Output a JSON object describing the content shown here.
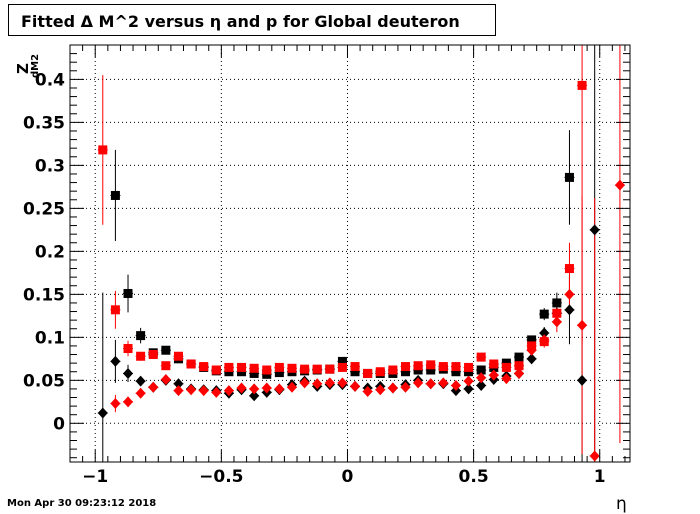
{
  "chart_data": {
    "type": "scatter",
    "title": "Fitted Δ M^2 versus η and p for Global deuteron",
    "xlabel": "η",
    "ylabel_main": "Z",
    "ylabel_sub": "dM2",
    "xlim": [
      -1.1,
      1.12
    ],
    "ylim": [
      -0.045,
      0.44
    ],
    "x_ticks": [
      -1,
      -0.5,
      0,
      0.5,
      1
    ],
    "x_tick_labels": [
      "−1",
      "−0.5",
      "0",
      "0.5",
      "1"
    ],
    "y_ticks": [
      0,
      0.05,
      0.1,
      0.15,
      0.2,
      0.25,
      0.3,
      0.35,
      0.4
    ],
    "y_tick_labels": [
      "0",
      "0.05",
      "0.1",
      "0.15",
      "0.2",
      "0.25",
      "0.3",
      "0.35",
      "0.4"
    ],
    "grid": true,
    "colors": {
      "black": "#000000",
      "red": "#ff0000"
    },
    "series": [
      {
        "color": "#000000",
        "marker": "square",
        "points": [
          [
            -0.92,
            0.265,
            0.053
          ],
          [
            -0.87,
            0.151,
            0.022
          ],
          [
            -0.82,
            0.102,
            0.009
          ],
          [
            -0.77,
            0.082,
            0.005
          ],
          [
            -0.72,
            0.085,
            0.004
          ],
          [
            -0.67,
            0.075,
            0.004
          ],
          [
            -0.62,
            0.069,
            0.003
          ],
          [
            -0.57,
            0.065,
            0.003
          ],
          [
            -0.52,
            0.061,
            0.003
          ],
          [
            -0.47,
            0.06,
            0.003
          ],
          [
            -0.42,
            0.06,
            0.003
          ],
          [
            -0.37,
            0.058,
            0.003
          ],
          [
            -0.32,
            0.057,
            0.003
          ],
          [
            -0.27,
            0.059,
            0.003
          ],
          [
            -0.22,
            0.06,
            0.003
          ],
          [
            -0.17,
            0.061,
            0.003
          ],
          [
            -0.12,
            0.062,
            0.003
          ],
          [
            -0.07,
            0.063,
            0.003
          ],
          [
            -0.02,
            0.072,
            0.003
          ],
          [
            0.03,
            0.06,
            0.003
          ],
          [
            0.08,
            0.058,
            0.003
          ],
          [
            0.13,
            0.058,
            0.003
          ],
          [
            0.18,
            0.058,
            0.003
          ],
          [
            0.23,
            0.06,
            0.003
          ],
          [
            0.28,
            0.062,
            0.003
          ],
          [
            0.33,
            0.062,
            0.003
          ],
          [
            0.38,
            0.063,
            0.003
          ],
          [
            0.43,
            0.06,
            0.003
          ],
          [
            0.48,
            0.06,
            0.003
          ],
          [
            0.53,
            0.062,
            0.003
          ],
          [
            0.58,
            0.065,
            0.003
          ],
          [
            0.63,
            0.07,
            0.004
          ],
          [
            0.68,
            0.077,
            0.004
          ],
          [
            0.73,
            0.097,
            0.005
          ],
          [
            0.78,
            0.127,
            0.007
          ],
          [
            0.83,
            0.14,
            0.012
          ],
          [
            0.88,
            0.286,
            0.055
          ]
        ]
      },
      {
        "color": "#000000",
        "marker": "diamond",
        "points": [
          [
            -0.97,
            0.012,
            0.14
          ],
          [
            -0.92,
            0.072,
            0.025
          ],
          [
            -0.87,
            0.058,
            0.01
          ],
          [
            -0.82,
            0.049,
            0.005
          ],
          [
            -0.77,
            0.042,
            0.004
          ],
          [
            -0.72,
            0.05,
            0.003
          ],
          [
            -0.67,
            0.046,
            0.003
          ],
          [
            -0.62,
            0.04,
            0.003
          ],
          [
            -0.57,
            0.039,
            0.003
          ],
          [
            -0.52,
            0.038,
            0.003
          ],
          [
            -0.47,
            0.035,
            0.003
          ],
          [
            -0.42,
            0.039,
            0.003
          ],
          [
            -0.37,
            0.032,
            0.003
          ],
          [
            -0.32,
            0.036,
            0.003
          ],
          [
            -0.27,
            0.039,
            0.003
          ],
          [
            -0.22,
            0.045,
            0.003
          ],
          [
            -0.17,
            0.049,
            0.003
          ],
          [
            -0.12,
            0.043,
            0.003
          ],
          [
            -0.07,
            0.045,
            0.003
          ],
          [
            -0.02,
            0.045,
            0.003
          ],
          [
            0.03,
            0.043,
            0.003
          ],
          [
            0.08,
            0.041,
            0.003
          ],
          [
            0.13,
            0.043,
            0.003
          ],
          [
            0.18,
            0.041,
            0.003
          ],
          [
            0.23,
            0.045,
            0.003
          ],
          [
            0.28,
            0.05,
            0.003
          ],
          [
            0.33,
            0.046,
            0.003
          ],
          [
            0.38,
            0.046,
            0.003
          ],
          [
            0.43,
            0.038,
            0.003
          ],
          [
            0.48,
            0.04,
            0.003
          ],
          [
            0.53,
            0.044,
            0.003
          ],
          [
            0.58,
            0.051,
            0.003
          ],
          [
            0.63,
            0.055,
            0.004
          ],
          [
            0.68,
            0.058,
            0.004
          ],
          [
            0.73,
            0.075,
            0.005
          ],
          [
            0.78,
            0.105,
            0.007
          ],
          [
            0.83,
            0.128,
            0.012
          ],
          [
            0.88,
            0.132,
            0.04
          ],
          [
            0.93,
            0.05,
            0.1
          ],
          [
            0.98,
            0.225,
            0.3
          ]
        ]
      },
      {
        "color": "#ff0000",
        "marker": "square",
        "points": [
          [
            -0.97,
            0.318,
            0.087
          ],
          [
            -0.92,
            0.132,
            0.022
          ],
          [
            -0.87,
            0.087,
            0.009
          ],
          [
            -0.82,
            0.078,
            0.005
          ],
          [
            -0.77,
            0.08,
            0.004
          ],
          [
            -0.72,
            0.067,
            0.004
          ],
          [
            -0.67,
            0.078,
            0.003
          ],
          [
            -0.62,
            0.069,
            0.003
          ],
          [
            -0.57,
            0.066,
            0.003
          ],
          [
            -0.52,
            0.062,
            0.003
          ],
          [
            -0.47,
            0.065,
            0.003
          ],
          [
            -0.42,
            0.065,
            0.003
          ],
          [
            -0.37,
            0.064,
            0.003
          ],
          [
            -0.32,
            0.062,
            0.003
          ],
          [
            -0.27,
            0.065,
            0.003
          ],
          [
            -0.22,
            0.064,
            0.003
          ],
          [
            -0.17,
            0.063,
            0.003
          ],
          [
            -0.12,
            0.063,
            0.003
          ],
          [
            -0.07,
            0.063,
            0.003
          ],
          [
            -0.02,
            0.065,
            0.003
          ],
          [
            0.03,
            0.066,
            0.003
          ],
          [
            0.08,
            0.058,
            0.003
          ],
          [
            0.13,
            0.06,
            0.003
          ],
          [
            0.18,
            0.062,
            0.003
          ],
          [
            0.23,
            0.066,
            0.003
          ],
          [
            0.28,
            0.067,
            0.003
          ],
          [
            0.33,
            0.068,
            0.003
          ],
          [
            0.38,
            0.066,
            0.003
          ],
          [
            0.43,
            0.066,
            0.003
          ],
          [
            0.48,
            0.065,
            0.003
          ],
          [
            0.53,
            0.077,
            0.003
          ],
          [
            0.58,
            0.069,
            0.003
          ],
          [
            0.63,
            0.065,
            0.004
          ],
          [
            0.68,
            0.067,
            0.004
          ],
          [
            0.73,
            0.09,
            0.005
          ],
          [
            0.78,
            0.095,
            0.007
          ],
          [
            0.83,
            0.128,
            0.012
          ],
          [
            0.88,
            0.18,
            0.03
          ],
          [
            0.93,
            0.393,
            0.3
          ]
        ]
      },
      {
        "color": "#ff0000",
        "marker": "diamond",
        "points": [
          [
            -0.92,
            0.023,
            0.01
          ],
          [
            -0.87,
            0.025,
            0.006
          ],
          [
            -0.82,
            0.035,
            0.004
          ],
          [
            -0.77,
            0.042,
            0.003
          ],
          [
            -0.72,
            0.051,
            0.003
          ],
          [
            -0.67,
            0.038,
            0.003
          ],
          [
            -0.62,
            0.039,
            0.003
          ],
          [
            -0.57,
            0.038,
            0.003
          ],
          [
            -0.52,
            0.036,
            0.003
          ],
          [
            -0.47,
            0.038,
            0.003
          ],
          [
            -0.42,
            0.041,
            0.003
          ],
          [
            -0.37,
            0.04,
            0.003
          ],
          [
            -0.32,
            0.041,
            0.003
          ],
          [
            -0.27,
            0.04,
            0.003
          ],
          [
            -0.22,
            0.042,
            0.003
          ],
          [
            -0.17,
            0.047,
            0.003
          ],
          [
            -0.12,
            0.046,
            0.003
          ],
          [
            -0.07,
            0.047,
            0.003
          ],
          [
            -0.02,
            0.047,
            0.003
          ],
          [
            0.03,
            0.043,
            0.003
          ],
          [
            0.08,
            0.037,
            0.003
          ],
          [
            0.13,
            0.039,
            0.003
          ],
          [
            0.18,
            0.041,
            0.003
          ],
          [
            0.23,
            0.042,
            0.003
          ],
          [
            0.28,
            0.047,
            0.003
          ],
          [
            0.33,
            0.046,
            0.003
          ],
          [
            0.38,
            0.047,
            0.003
          ],
          [
            0.43,
            0.044,
            0.003
          ],
          [
            0.48,
            0.049,
            0.003
          ],
          [
            0.53,
            0.053,
            0.003
          ],
          [
            0.58,
            0.056,
            0.003
          ],
          [
            0.63,
            0.052,
            0.004
          ],
          [
            0.68,
            0.058,
            0.004
          ],
          [
            0.73,
            0.085,
            0.005
          ],
          [
            0.78,
            0.097,
            0.007
          ],
          [
            0.83,
            0.118,
            0.012
          ],
          [
            0.88,
            0.15,
            0.02
          ],
          [
            0.93,
            0.114,
            0.15
          ],
          [
            0.98,
            -0.038,
            0.3
          ],
          [
            1.08,
            0.277,
            0.3
          ]
        ]
      }
    ]
  },
  "footer": "Mon Apr 30 09:23:12 2018"
}
